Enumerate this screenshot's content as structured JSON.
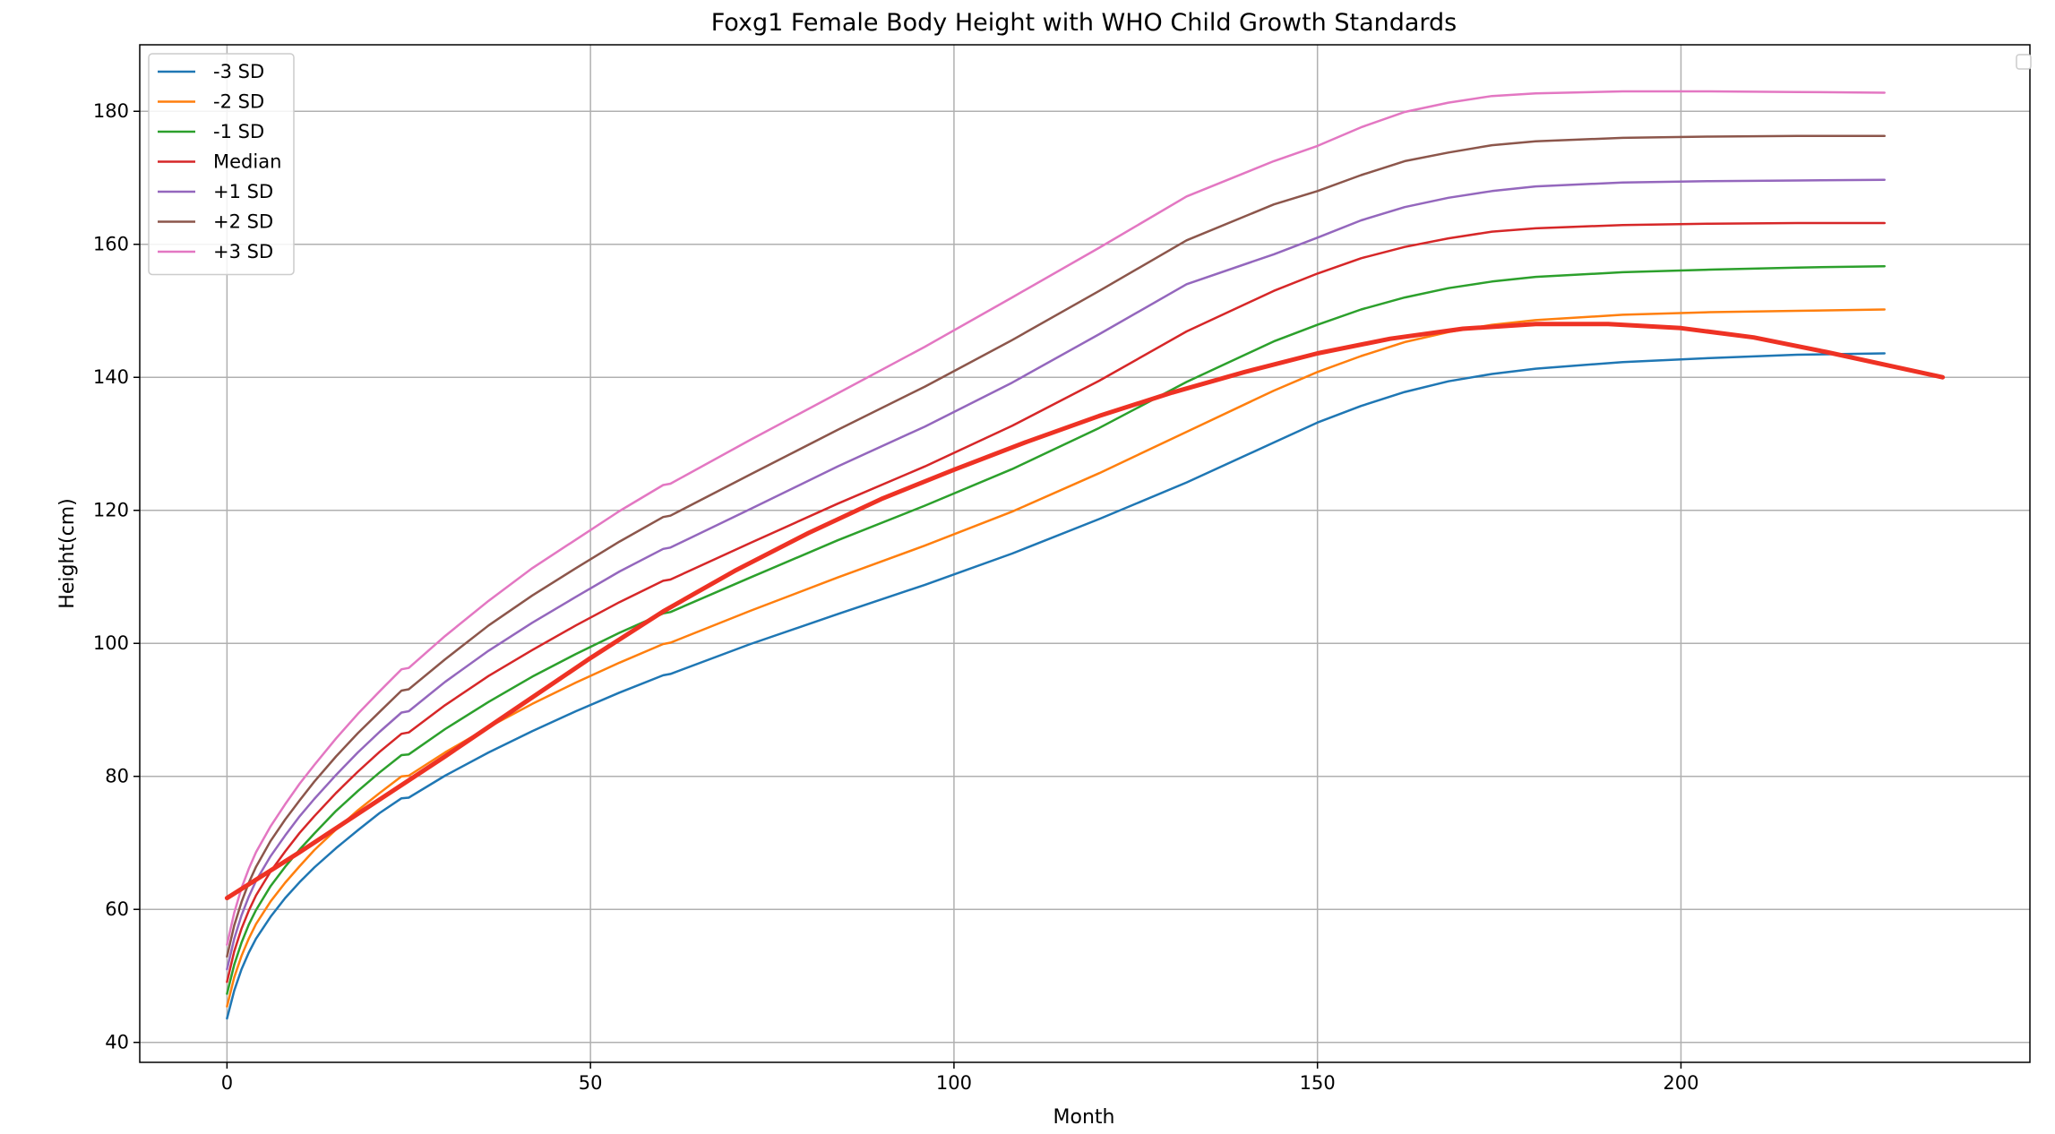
{
  "chart_data": {
    "type": "line",
    "title": "Foxg1 Female Body Height with WHO Child Growth Standards",
    "xlabel": "Month",
    "ylabel": "Height(cm)",
    "xlim": [
      -12,
      248
    ],
    "ylim": [
      37,
      190
    ],
    "xticks": [
      0,
      50,
      100,
      150,
      200
    ],
    "yticks": [
      40,
      60,
      80,
      100,
      120,
      140,
      160,
      180
    ],
    "grid": true,
    "legend_position": "top-left",
    "series": [
      {
        "name": "-3 SD",
        "color": "#1f77b4",
        "x": [
          0,
          1,
          2,
          3,
          4,
          6,
          8,
          10,
          12,
          15,
          18,
          21,
          24,
          25,
          30,
          36,
          42,
          48,
          54,
          60,
          61,
          72,
          84,
          96,
          108,
          120,
          132,
          144,
          150,
          156,
          162,
          168,
          174,
          180,
          192,
          204,
          216,
          228
        ],
        "values": [
          43.6,
          47.8,
          51.0,
          53.5,
          55.6,
          58.9,
          61.7,
          64.1,
          66.3,
          69.2,
          71.9,
          74.5,
          76.7,
          76.8,
          80.1,
          83.6,
          86.8,
          89.8,
          92.6,
          95.2,
          95.4,
          99.9,
          104.4,
          108.8,
          113.5,
          118.7,
          124.2,
          130.2,
          133.2,
          135.7,
          137.8,
          139.4,
          140.5,
          141.3,
          142.3,
          142.9,
          143.4,
          143.6
        ]
      },
      {
        "name": "-2 SD",
        "color": "#ff7f0e",
        "x": [
          0,
          1,
          2,
          3,
          4,
          6,
          8,
          10,
          12,
          15,
          18,
          21,
          24,
          25,
          30,
          36,
          42,
          48,
          54,
          60,
          61,
          72,
          84,
          96,
          108,
          120,
          132,
          144,
          150,
          156,
          162,
          168,
          174,
          180,
          192,
          204,
          216,
          228
        ],
        "values": [
          45.4,
          49.8,
          53.0,
          55.6,
          57.8,
          61.2,
          64.0,
          66.5,
          68.9,
          72.0,
          74.9,
          77.5,
          80.0,
          80.1,
          83.6,
          87.4,
          90.9,
          94.1,
          97.1,
          99.9,
          100.1,
          104.9,
          109.9,
          114.7,
          119.8,
          125.6,
          131.8,
          138.0,
          140.8,
          143.2,
          145.3,
          146.8,
          147.9,
          148.6,
          149.4,
          149.8,
          150.0,
          150.2
        ]
      },
      {
        "name": "-1 SD",
        "color": "#2ca02c",
        "x": [
          0,
          1,
          2,
          3,
          4,
          6,
          8,
          10,
          12,
          15,
          18,
          21,
          24,
          25,
          30,
          36,
          42,
          48,
          54,
          60,
          61,
          72,
          84,
          96,
          108,
          120,
          132,
          144,
          150,
          156,
          162,
          168,
          174,
          180,
          192,
          204,
          216,
          228
        ],
        "values": [
          47.3,
          51.7,
          55.0,
          57.7,
          59.9,
          63.5,
          66.4,
          69.0,
          71.4,
          74.8,
          77.8,
          80.6,
          83.2,
          83.3,
          87.1,
          91.2,
          95.0,
          98.4,
          101.6,
          104.5,
          104.7,
          109.9,
          115.5,
          120.7,
          126.2,
          132.4,
          139.3,
          145.4,
          147.9,
          150.2,
          152.0,
          153.4,
          154.4,
          155.1,
          155.8,
          156.2,
          156.5,
          156.7
        ]
      },
      {
        "name": "Median",
        "color": "#d62728",
        "x": [
          0,
          1,
          2,
          3,
          4,
          6,
          8,
          10,
          12,
          15,
          18,
          21,
          24,
          25,
          30,
          36,
          42,
          48,
          54,
          60,
          61,
          72,
          84,
          96,
          108,
          120,
          132,
          144,
          150,
          156,
          162,
          168,
          174,
          180,
          192,
          204,
          216,
          228
        ],
        "values": [
          49.1,
          53.7,
          57.1,
          59.8,
          62.1,
          65.7,
          68.7,
          71.5,
          74.0,
          77.5,
          80.7,
          83.7,
          86.4,
          86.6,
          90.7,
          95.1,
          99.0,
          102.7,
          106.2,
          109.4,
          109.6,
          115.1,
          121.0,
          126.6,
          132.7,
          139.5,
          146.9,
          153.0,
          155.6,
          157.9,
          159.6,
          160.9,
          161.9,
          162.4,
          162.9,
          163.1,
          163.2,
          163.2
        ]
      },
      {
        "name": "+1 SD",
        "color": "#9467bd",
        "x": [
          0,
          1,
          2,
          3,
          4,
          6,
          8,
          10,
          12,
          15,
          18,
          21,
          24,
          25,
          30,
          36,
          42,
          48,
          54,
          60,
          61,
          72,
          84,
          96,
          108,
          120,
          132,
          144,
          150,
          156,
          162,
          168,
          174,
          180,
          192,
          204,
          216,
          228
        ],
        "values": [
          51.0,
          55.6,
          59.1,
          61.9,
          64.3,
          68.0,
          71.1,
          74.0,
          76.6,
          80.2,
          83.6,
          86.7,
          89.6,
          89.8,
          94.2,
          98.9,
          103.1,
          107.0,
          110.8,
          114.2,
          114.4,
          120.2,
          126.6,
          132.6,
          139.2,
          146.5,
          154.0,
          158.5,
          161.0,
          163.6,
          165.6,
          167.0,
          168.0,
          168.7,
          169.3,
          169.5,
          169.6,
          169.7
        ]
      },
      {
        "name": "+2 SD",
        "color": "#8c564b",
        "x": [
          0,
          1,
          2,
          3,
          4,
          6,
          8,
          10,
          12,
          15,
          18,
          21,
          24,
          25,
          30,
          36,
          42,
          48,
          54,
          60,
          61,
          72,
          84,
          96,
          108,
          120,
          132,
          144,
          150,
          156,
          162,
          168,
          174,
          180,
          192,
          204,
          216,
          228
        ],
        "values": [
          52.9,
          57.6,
          61.1,
          64.0,
          66.4,
          70.3,
          73.5,
          76.4,
          79.2,
          83.0,
          86.5,
          89.7,
          92.9,
          93.1,
          97.6,
          102.7,
          107.2,
          111.3,
          115.3,
          119.0,
          119.2,
          125.4,
          132.1,
          138.6,
          145.6,
          153.0,
          160.6,
          166.0,
          168.0,
          170.4,
          172.5,
          173.8,
          174.9,
          175.5,
          176.0,
          176.2,
          176.3,
          176.3
        ]
      },
      {
        "name": "+3 SD",
        "color": "#e377c2",
        "x": [
          0,
          1,
          2,
          3,
          4,
          6,
          8,
          10,
          12,
          15,
          18,
          21,
          24,
          25,
          30,
          36,
          42,
          48,
          54,
          60,
          61,
          72,
          84,
          96,
          108,
          120,
          132,
          144,
          150,
          156,
          162,
          168,
          174,
          180,
          192,
          204,
          216,
          228
        ],
        "values": [
          54.7,
          59.5,
          63.2,
          66.1,
          68.6,
          72.5,
          75.8,
          78.9,
          81.7,
          85.7,
          89.4,
          92.8,
          96.1,
          96.3,
          101.1,
          106.4,
          111.3,
          115.6,
          119.9,
          123.8,
          124.0,
          130.6,
          137.6,
          144.6,
          152.0,
          159.5,
          167.2,
          172.5,
          174.8,
          177.6,
          179.9,
          181.3,
          182.3,
          182.7,
          183.0,
          183.0,
          182.9,
          182.8
        ]
      },
      {
        "name": "",
        "color": "#ee3224",
        "stroke_width": 5,
        "x": [
          0,
          10,
          20,
          30,
          40,
          50,
          60,
          70,
          80,
          90,
          100,
          110,
          120,
          130,
          140,
          150,
          160,
          170,
          180,
          190,
          200,
          210,
          220,
          236
        ],
        "values": [
          61.7,
          68.6,
          75.8,
          83.0,
          90.4,
          97.8,
          104.8,
          111.0,
          116.6,
          121.7,
          126.1,
          130.3,
          134.2,
          137.7,
          140.8,
          143.6,
          145.8,
          147.3,
          148.0,
          148.0,
          147.4,
          146.0,
          143.8,
          140.0
        ]
      }
    ]
  }
}
